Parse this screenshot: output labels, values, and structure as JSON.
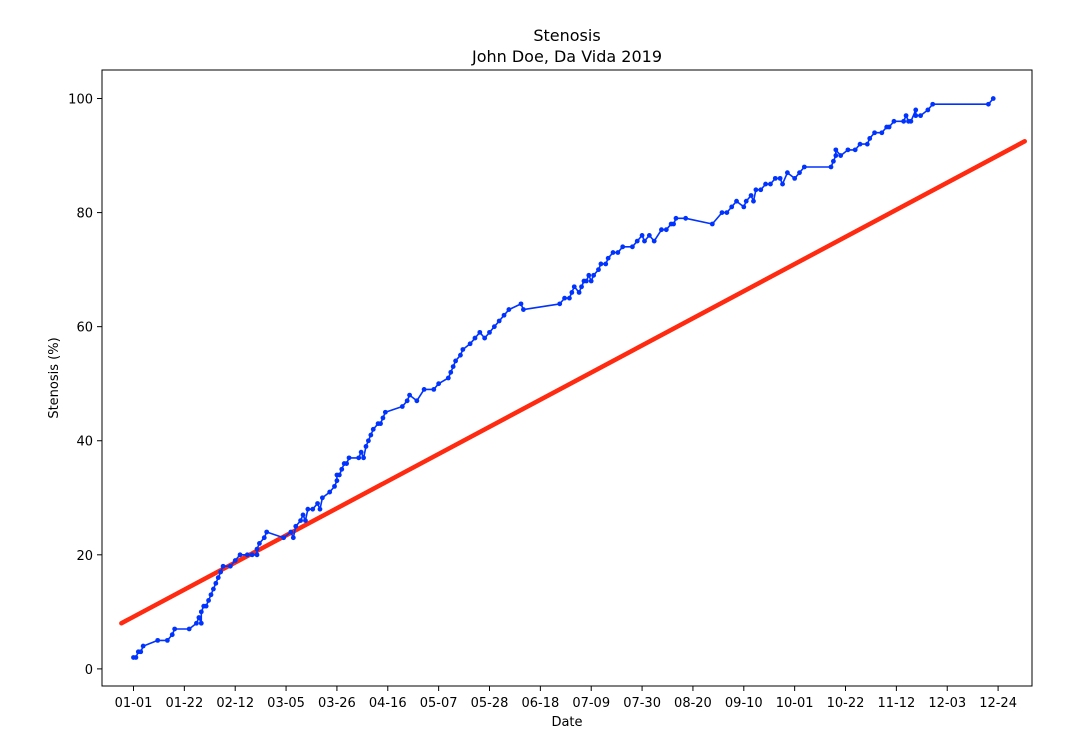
{
  "chart_data": {
    "type": "line",
    "title": "Stenosis",
    "subtitle": "John Doe, Da Vida 2019",
    "xlabel": "Date",
    "ylabel": "Stenosis (%)",
    "x_ticks": [
      "01-01",
      "01-22",
      "02-12",
      "03-05",
      "03-26",
      "04-16",
      "05-07",
      "05-28",
      "06-18",
      "07-09",
      "07-30",
      "08-20",
      "09-10",
      "10-01",
      "10-22",
      "11-12",
      "12-03",
      "12-24"
    ],
    "y_ticks": [
      0,
      20,
      40,
      60,
      80,
      100
    ],
    "xlim": [
      "2018-12-19",
      "2020-01-07"
    ],
    "ylim": [
      -3,
      105
    ],
    "grid": false,
    "colors": {
      "measured": "#0033ff",
      "trend": "#ff2a0f"
    },
    "series": [
      {
        "kind": "measured",
        "points": [
          [
            "2019-01-01",
            2
          ],
          [
            "2019-01-02",
            2
          ],
          [
            "2019-01-03",
            3
          ],
          [
            "2019-01-04",
            3
          ],
          [
            "2019-01-05",
            4
          ],
          [
            "2019-01-11",
            5
          ],
          [
            "2019-01-15",
            5
          ],
          [
            "2019-01-17",
            6
          ],
          [
            "2019-01-18",
            7
          ],
          [
            "2019-01-24",
            7
          ],
          [
            "2019-01-27",
            8
          ],
          [
            "2019-01-28",
            9
          ],
          [
            "2019-01-29",
            8
          ],
          [
            "2019-01-29",
            10
          ],
          [
            "2019-01-30",
            11
          ],
          [
            "2019-01-31",
            11
          ],
          [
            "2019-02-01",
            12
          ],
          [
            "2019-02-02",
            13
          ],
          [
            "2019-02-03",
            14
          ],
          [
            "2019-02-04",
            15
          ],
          [
            "2019-02-05",
            16
          ],
          [
            "2019-02-06",
            17
          ],
          [
            "2019-02-07",
            18
          ],
          [
            "2019-02-10",
            18
          ],
          [
            "2019-02-12",
            19
          ],
          [
            "2019-02-14",
            20
          ],
          [
            "2019-02-17",
            20
          ],
          [
            "2019-02-19",
            20
          ],
          [
            "2019-02-21",
            20
          ],
          [
            "2019-02-21",
            21
          ],
          [
            "2019-02-22",
            22
          ],
          [
            "2019-02-24",
            23
          ],
          [
            "2019-02-25",
            24
          ],
          [
            "2019-03-04",
            23
          ],
          [
            "2019-03-07",
            24
          ],
          [
            "2019-03-08",
            23
          ],
          [
            "2019-03-09",
            25
          ],
          [
            "2019-03-11",
            26
          ],
          [
            "2019-03-12",
            27
          ],
          [
            "2019-03-13",
            26
          ],
          [
            "2019-03-14",
            28
          ],
          [
            "2019-03-16",
            28
          ],
          [
            "2019-03-18",
            29
          ],
          [
            "2019-03-19",
            28
          ],
          [
            "2019-03-20",
            30
          ],
          [
            "2019-03-23",
            31
          ],
          [
            "2019-03-25",
            32
          ],
          [
            "2019-03-26",
            33
          ],
          [
            "2019-03-26",
            34
          ],
          [
            "2019-03-27",
            34
          ],
          [
            "2019-03-28",
            35
          ],
          [
            "2019-03-29",
            36
          ],
          [
            "2019-03-30",
            36
          ],
          [
            "2019-03-31",
            37
          ],
          [
            "2019-04-04",
            37
          ],
          [
            "2019-04-05",
            38
          ],
          [
            "2019-04-06",
            37
          ],
          [
            "2019-04-07",
            39
          ],
          [
            "2019-04-08",
            40
          ],
          [
            "2019-04-09",
            41
          ],
          [
            "2019-04-10",
            42
          ],
          [
            "2019-04-12",
            43
          ],
          [
            "2019-04-13",
            43
          ],
          [
            "2019-04-14",
            44
          ],
          [
            "2019-04-15",
            45
          ],
          [
            "2019-04-22",
            46
          ],
          [
            "2019-04-24",
            47
          ],
          [
            "2019-04-25",
            48
          ],
          [
            "2019-04-28",
            47
          ],
          [
            "2019-05-01",
            49
          ],
          [
            "2019-05-05",
            49
          ],
          [
            "2019-05-07",
            50
          ],
          [
            "2019-05-11",
            51
          ],
          [
            "2019-05-12",
            52
          ],
          [
            "2019-05-13",
            53
          ],
          [
            "2019-05-14",
            54
          ],
          [
            "2019-05-16",
            55
          ],
          [
            "2019-05-17",
            56
          ],
          [
            "2019-05-20",
            57
          ],
          [
            "2019-05-22",
            58
          ],
          [
            "2019-05-24",
            59
          ],
          [
            "2019-05-26",
            58
          ],
          [
            "2019-05-28",
            59
          ],
          [
            "2019-05-30",
            60
          ],
          [
            "2019-06-01",
            61
          ],
          [
            "2019-06-03",
            62
          ],
          [
            "2019-06-05",
            63
          ],
          [
            "2019-06-10",
            64
          ],
          [
            "2019-06-11",
            63
          ],
          [
            "2019-06-26",
            64
          ],
          [
            "2019-06-28",
            65
          ],
          [
            "2019-06-30",
            65
          ],
          [
            "2019-07-01",
            66
          ],
          [
            "2019-07-02",
            67
          ],
          [
            "2019-07-04",
            66
          ],
          [
            "2019-07-05",
            67
          ],
          [
            "2019-07-06",
            68
          ],
          [
            "2019-07-07",
            68
          ],
          [
            "2019-07-08",
            69
          ],
          [
            "2019-07-09",
            68
          ],
          [
            "2019-07-10",
            69
          ],
          [
            "2019-07-12",
            70
          ],
          [
            "2019-07-13",
            71
          ],
          [
            "2019-07-15",
            71
          ],
          [
            "2019-07-16",
            72
          ],
          [
            "2019-07-18",
            73
          ],
          [
            "2019-07-20",
            73
          ],
          [
            "2019-07-22",
            74
          ],
          [
            "2019-07-26",
            74
          ],
          [
            "2019-07-28",
            75
          ],
          [
            "2019-07-30",
            76
          ],
          [
            "2019-07-31",
            75
          ],
          [
            "2019-08-02",
            76
          ],
          [
            "2019-08-04",
            75
          ],
          [
            "2019-08-07",
            77
          ],
          [
            "2019-08-09",
            77
          ],
          [
            "2019-08-11",
            78
          ],
          [
            "2019-08-12",
            78
          ],
          [
            "2019-08-13",
            79
          ],
          [
            "2019-08-17",
            79
          ],
          [
            "2019-08-28",
            78
          ],
          [
            "2019-09-01",
            80
          ],
          [
            "2019-09-03",
            80
          ],
          [
            "2019-09-05",
            81
          ],
          [
            "2019-09-07",
            82
          ],
          [
            "2019-09-10",
            81
          ],
          [
            "2019-09-11",
            82
          ],
          [
            "2019-09-13",
            83
          ],
          [
            "2019-09-14",
            82
          ],
          [
            "2019-09-15",
            84
          ],
          [
            "2019-09-17",
            84
          ],
          [
            "2019-09-19",
            85
          ],
          [
            "2019-09-21",
            85
          ],
          [
            "2019-09-23",
            86
          ],
          [
            "2019-09-25",
            86
          ],
          [
            "2019-09-26",
            85
          ],
          [
            "2019-09-28",
            87
          ],
          [
            "2019-10-01",
            86
          ],
          [
            "2019-10-03",
            87
          ],
          [
            "2019-10-05",
            88
          ],
          [
            "2019-10-16",
            88
          ],
          [
            "2019-10-17",
            89
          ],
          [
            "2019-10-18",
            90
          ],
          [
            "2019-10-18",
            91
          ],
          [
            "2019-10-20",
            90
          ],
          [
            "2019-10-23",
            91
          ],
          [
            "2019-10-26",
            91
          ],
          [
            "2019-10-28",
            92
          ],
          [
            "2019-10-31",
            92
          ],
          [
            "2019-11-01",
            93
          ],
          [
            "2019-11-03",
            94
          ],
          [
            "2019-11-06",
            94
          ],
          [
            "2019-11-08",
            95
          ],
          [
            "2019-11-09",
            95
          ],
          [
            "2019-11-11",
            96
          ],
          [
            "2019-11-15",
            96
          ],
          [
            "2019-11-16",
            97
          ],
          [
            "2019-11-17",
            96
          ],
          [
            "2019-11-18",
            96
          ],
          [
            "2019-11-20",
            98
          ],
          [
            "2019-11-20",
            97
          ],
          [
            "2019-11-22",
            97
          ],
          [
            "2019-11-25",
            98
          ],
          [
            "2019-11-27",
            99
          ],
          [
            "2019-12-20",
            99
          ],
          [
            "2019-12-22",
            100
          ]
        ]
      },
      {
        "kind": "trend",
        "points": [
          [
            "2018-12-27",
            8
          ],
          [
            "2020-01-04",
            92.5
          ]
        ]
      }
    ]
  }
}
